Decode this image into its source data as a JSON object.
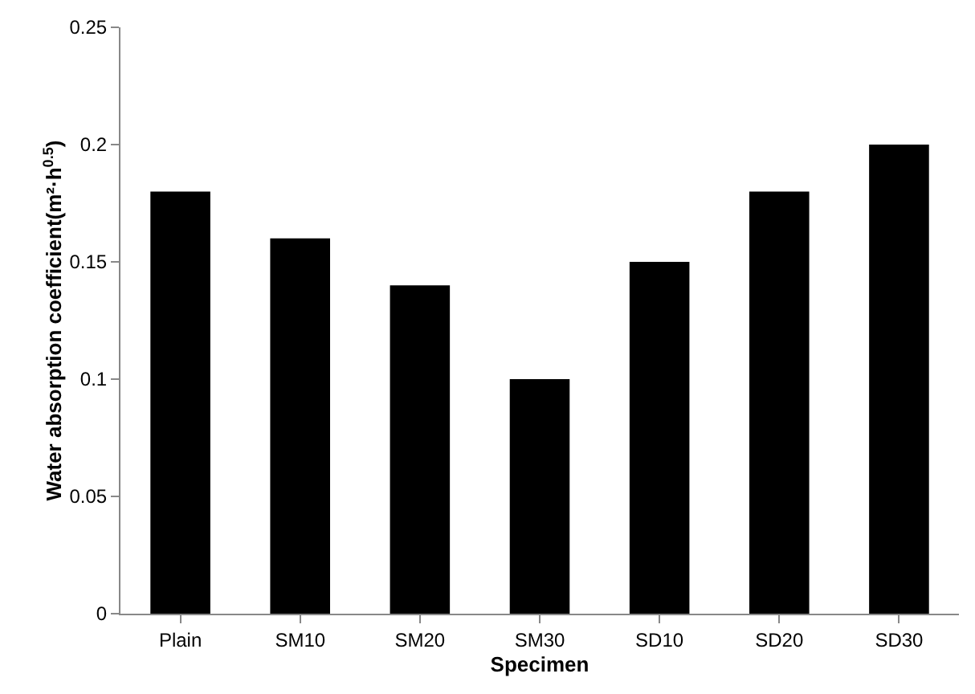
{
  "chart_data": {
    "type": "bar",
    "xlabel": "Specimen",
    "ylabel": "Water absorption coefficient(m²·h$^{0.5}$)",
    "categories": [
      "Plain",
      "SM10",
      "SM20",
      "SM30",
      "SD10",
      "SD20",
      "SD30"
    ],
    "values": [
      0.18,
      0.16,
      0.14,
      0.1,
      0.15,
      0.18,
      0.2
    ],
    "color": "#000000",
    "ylim": [
      0,
      0.25
    ],
    "yticks": [
      0,
      0.05,
      0.1,
      0.15,
      0.2,
      0.25
    ],
    "grid": false
  }
}
